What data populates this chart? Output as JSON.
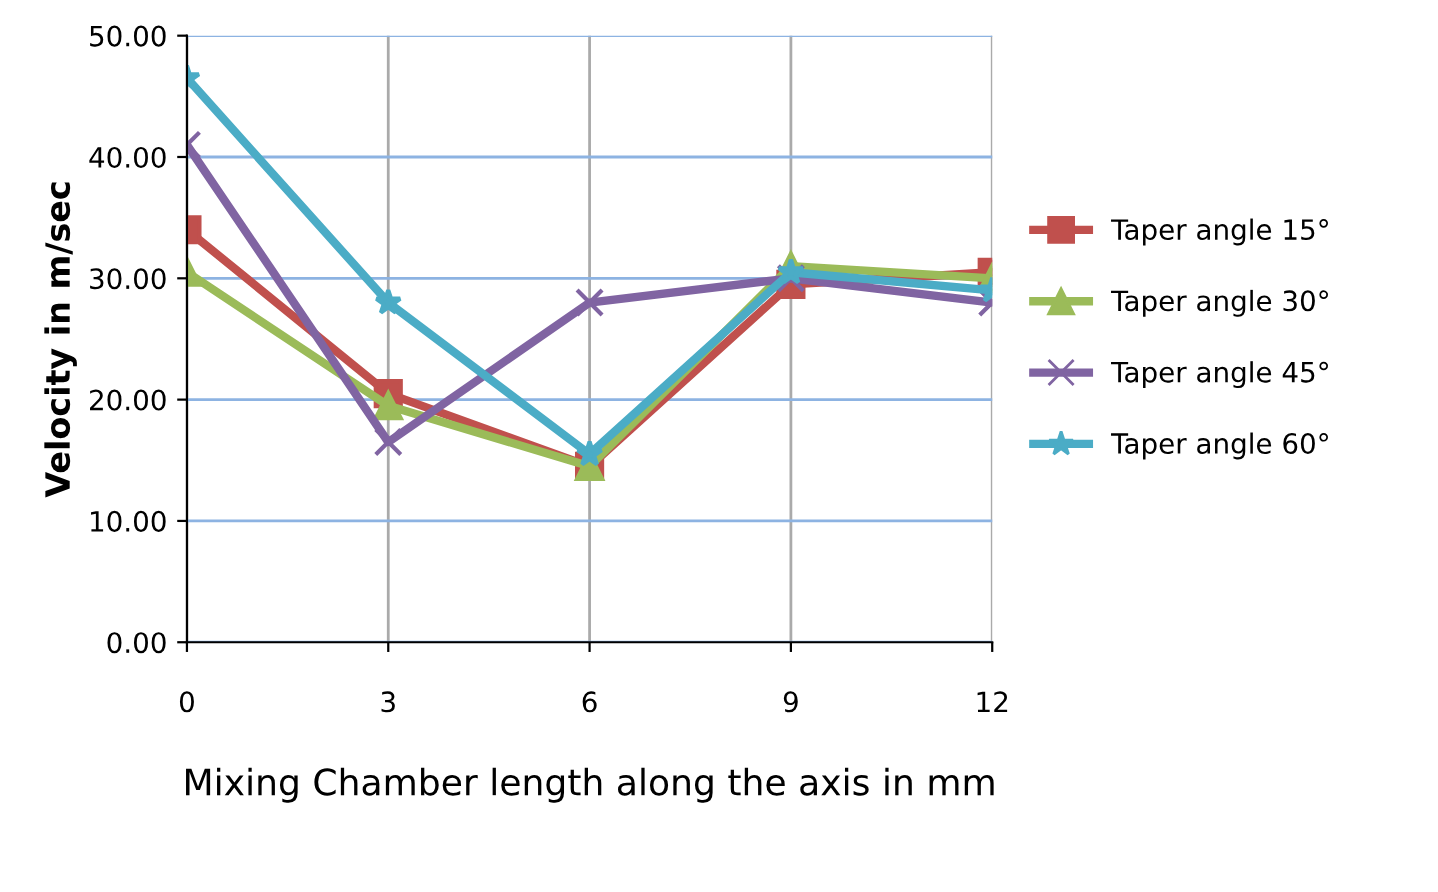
{
  "chart_data": {
    "type": "line",
    "xlabel": "Mixing Chamber length along the axis in mm",
    "ylabel": "Velocity in m/sec",
    "categories": [
      "0",
      "3",
      "6",
      "9",
      "12"
    ],
    "series": [
      {
        "name": "Taper angle 15°",
        "color": "#c0504d",
        "marker": "square",
        "values": [
          34,
          20.5,
          14.5,
          29.5,
          30.5
        ]
      },
      {
        "name": "Taper angle 30°",
        "color": "#9bbb59",
        "marker": "triangle",
        "values": [
          30.5,
          19.5,
          14.5,
          31,
          30
        ]
      },
      {
        "name": "Taper angle 45°",
        "color": "#8064a2",
        "marker": "cross",
        "values": [
          41,
          16.5,
          28,
          30,
          28
        ]
      },
      {
        "name": "Taper angle 60°",
        "color": "#4bacc6",
        "marker": "star",
        "values": [
          46.5,
          28,
          15.5,
          30.5,
          29
        ]
      }
    ],
    "ylim": [
      0,
      50
    ],
    "yticks": [
      {
        "value": 0,
        "label": "0.00"
      },
      {
        "value": 10,
        "label": "10.00"
      },
      {
        "value": 20,
        "label": "20.00"
      },
      {
        "value": 30,
        "label": "30.00"
      },
      {
        "value": 40,
        "label": "40.00"
      },
      {
        "value": 50,
        "label": "50.00"
      }
    ],
    "grid": true,
    "legend": "right",
    "line_style": "solid"
  }
}
